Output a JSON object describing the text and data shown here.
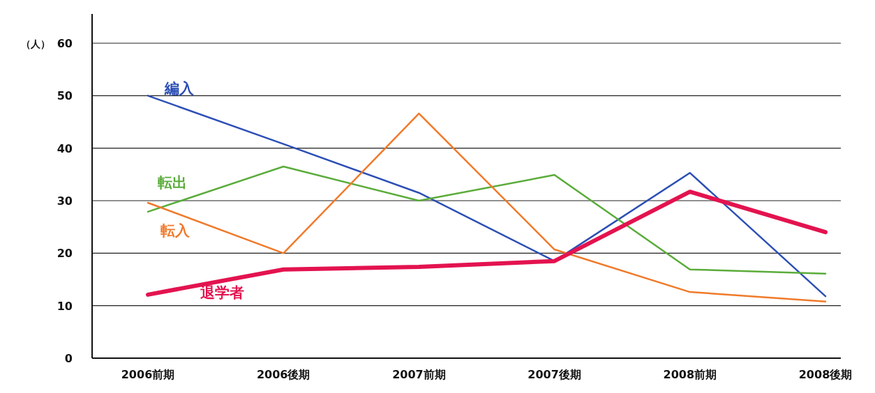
{
  "chart_data": {
    "type": "line",
    "ylabel": "（人）",
    "categories": [
      "2006前期",
      "2006後期",
      "2007前期",
      "2007後期",
      "2008前期",
      "2008後期"
    ],
    "ylim": [
      0,
      60
    ],
    "yticks": [
      0,
      10,
      20,
      30,
      40,
      50,
      60
    ],
    "grid": "y",
    "marker": "none",
    "line_style": "solid",
    "series": [
      {
        "name": "編入",
        "color": "#2c4fb5",
        "values": [
          50,
          40.8,
          31.5,
          18.5,
          35.3,
          11.8
        ]
      },
      {
        "name": "転出",
        "color": "#5aac3a",
        "values": [
          27.9,
          36.5,
          30,
          34.9,
          16.9,
          16.1
        ]
      },
      {
        "name": "転入",
        "color": "#f07a2a",
        "values": [
          29.6,
          20,
          46.6,
          20.7,
          12.6,
          10.8
        ]
      },
      {
        "name": "退学者",
        "color": "#e3134f",
        "values": [
          12.1,
          16.9,
          17.4,
          18.5,
          31.7,
          24
        ]
      }
    ]
  }
}
